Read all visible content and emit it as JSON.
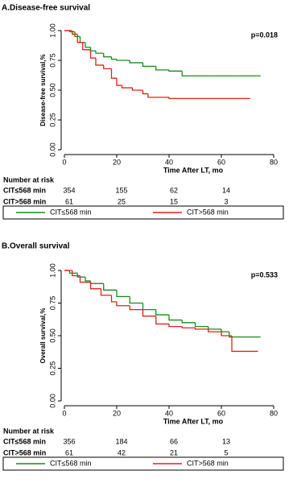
{
  "chart_data": [
    {
      "type": "line",
      "title": "A.Disease-free survival",
      "ylabel": "Disease-free survival,%",
      "xlabel": "Time After LT, mo",
      "annotation": "p=0.018",
      "xlim": [
        0,
        80
      ],
      "xticks": [
        0,
        20,
        40,
        60,
        80
      ],
      "ylim": [
        0,
        1
      ],
      "yticks": [
        {
          "value": 0,
          "label": "0.00"
        },
        {
          "value": 0.25,
          "label": "0.25"
        },
        {
          "value": 0.5,
          "label": "0.50"
        },
        {
          "value": 0.75,
          "label": "0.75"
        },
        {
          "value": 1,
          "label": "1.00"
        }
      ],
      "series": [
        {
          "name": "CIT≤568 min",
          "color": "#1a8a1a",
          "x": [
            0,
            2,
            4,
            6,
            8,
            10,
            12,
            15,
            18,
            20,
            25,
            30,
            35,
            40,
            45,
            55,
            65,
            75
          ],
          "values": [
            1,
            0.99,
            0.95,
            0.9,
            0.86,
            0.83,
            0.81,
            0.78,
            0.76,
            0.75,
            0.73,
            0.7,
            0.67,
            0.66,
            0.62,
            0.62,
            0.62,
            0.62
          ]
        },
        {
          "name": "CIT>568 min",
          "color": "#e0201b",
          "x": [
            0,
            3,
            5,
            7,
            10,
            12,
            15,
            18,
            20,
            22,
            26,
            30,
            32,
            40,
            50,
            71
          ],
          "values": [
            1,
            0.97,
            0.9,
            0.84,
            0.77,
            0.71,
            0.68,
            0.6,
            0.54,
            0.52,
            0.5,
            0.47,
            0.44,
            0.43,
            0.43,
            0.43
          ]
        }
      ],
      "risk_table": {
        "title": "Number at risk",
        "times": [
          0,
          20,
          40,
          60
        ],
        "rows": [
          {
            "name": "CIT≤568 min",
            "values": [
              354,
              155,
              62,
              14
            ]
          },
          {
            "name": "CIT>568 min",
            "values": [
              61,
              25,
              15,
              3
            ]
          }
        ]
      }
    },
    {
      "type": "line",
      "title": "B.Overall survival",
      "ylabel": "Overall survival,%",
      "xlabel": "Time After LT, mo",
      "annotation": "p=0.533",
      "xlim": [
        0,
        80
      ],
      "xticks": [
        0,
        20,
        40,
        60,
        80
      ],
      "ylim": [
        0,
        1
      ],
      "yticks": [
        {
          "value": 0,
          "label": "0.00"
        },
        {
          "value": 0.25,
          "label": "0.25"
        },
        {
          "value": 0.5,
          "label": "0.50"
        },
        {
          "value": 0.75,
          "label": "0.75"
        },
        {
          "value": 1,
          "label": "1.00"
        }
      ],
      "series": [
        {
          "name": "CIT≤568 min",
          "color": "#1a8a1a",
          "x": [
            0,
            2,
            5,
            8,
            10,
            15,
            20,
            25,
            30,
            35,
            40,
            45,
            50,
            55,
            60,
            63,
            75
          ],
          "values": [
            1,
            0.98,
            0.95,
            0.92,
            0.9,
            0.85,
            0.8,
            0.75,
            0.7,
            0.66,
            0.62,
            0.6,
            0.57,
            0.55,
            0.53,
            0.49,
            0.49
          ]
        },
        {
          "name": "CIT>568 min",
          "color": "#e0201b",
          "x": [
            0,
            3,
            6,
            10,
            14,
            18,
            20,
            25,
            30,
            35,
            40,
            45,
            50,
            55,
            60,
            64,
            74
          ],
          "values": [
            1,
            0.96,
            0.91,
            0.86,
            0.81,
            0.76,
            0.73,
            0.7,
            0.65,
            0.59,
            0.57,
            0.56,
            0.55,
            0.53,
            0.5,
            0.38,
            0.38
          ]
        }
      ],
      "risk_table": {
        "title": "Number at risk",
        "times": [
          0,
          20,
          40,
          60
        ],
        "rows": [
          {
            "name": "CIT≤568 min",
            "values": [
              356,
              184,
              66,
              13
            ]
          },
          {
            "name": "CIT>568 min",
            "values": [
              61,
              42,
              21,
              5
            ]
          }
        ]
      }
    }
  ]
}
